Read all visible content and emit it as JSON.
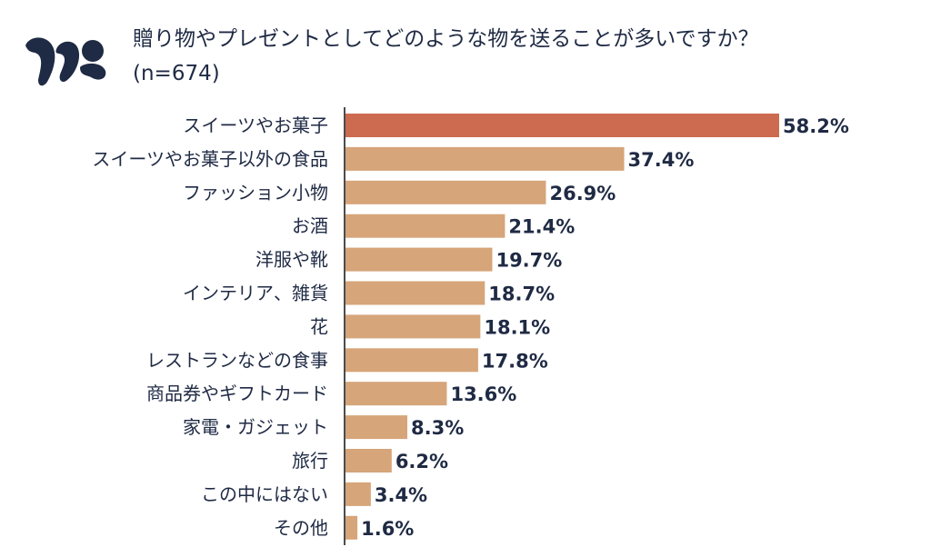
{
  "header": {
    "title_line1": "贈り物やプレゼントとしてどのような物を送ることが多いですか？",
    "title_line2": "(n=674)"
  },
  "colors": {
    "highlight": "#cc6b4f",
    "bar": "#d6a57a",
    "text": "#1f2a44",
    "axis": "#111111",
    "logo": "#1f2a44"
  },
  "logo": {
    "icon": "brand-logo-icon"
  },
  "chart_data": {
    "type": "bar",
    "orientation": "horizontal",
    "title": "贈り物やプレゼントとしてどのような物を送ることが多いですか？ (n=674)",
    "xlabel": "",
    "ylabel": "",
    "unit": "%",
    "xlim": [
      0,
      65
    ],
    "grid": false,
    "legend": "none",
    "highlight_index": 0,
    "categories": [
      "スイーツやお菓子",
      "スイーツやお菓子以外の食品",
      "ファッション小物",
      "お酒",
      "洋服や靴",
      "インテリア、雑貨",
      "花",
      "レストランなどの食事",
      "商品券やギフトカード",
      "家電・ガジェット",
      "旅行",
      "この中にはない",
      "その他"
    ],
    "values": [
      58.2,
      37.4,
      26.9,
      21.4,
      19.7,
      18.7,
      18.1,
      17.8,
      13.6,
      8.3,
      6.2,
      3.4,
      1.6
    ],
    "value_labels": [
      "58.2%",
      "37.4%",
      "26.9%",
      "21.4%",
      "19.7%",
      "18.7%",
      "18.1%",
      "17.8%",
      "13.6%",
      "8.3%",
      "6.2%",
      "3.4%",
      "1.6%"
    ]
  }
}
